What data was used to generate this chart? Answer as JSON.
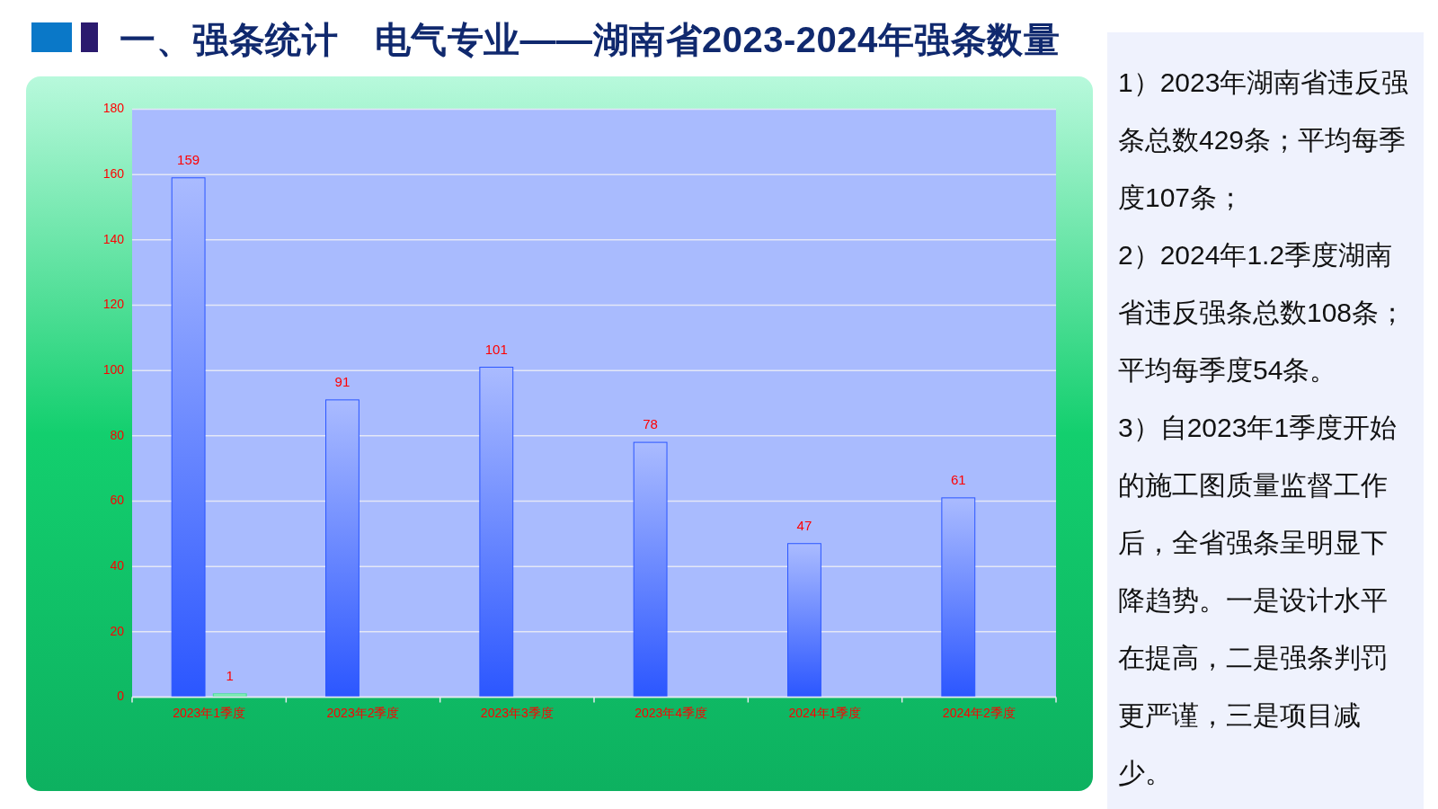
{
  "chart_data": {
    "type": "bar",
    "title": "一、强条统计　电气专业——湖南省2023-2024年强条数量",
    "categories": [
      "2023年1季度",
      "2023年2季度",
      "2023年3季度",
      "2023年4季度",
      "2024年1季度",
      "2024年2季度"
    ],
    "series": [
      {
        "color": "#2b56ff",
        "values": [
          159,
          91,
          101,
          78,
          47,
          61
        ]
      },
      {
        "color": "#3fe08f",
        "values": [
          1,
          null,
          null,
          null,
          null,
          null
        ]
      }
    ],
    "ylim": [
      0,
      180
    ],
    "yticks": [
      0,
      20,
      40,
      60,
      80,
      100,
      120,
      140,
      160,
      180
    ],
    "grid": "y",
    "data_labels": true,
    "annotations": [
      "1）2023年湖南省违反强条总数429条；平均每季度107条；",
      "2）2024年1.2季度湖南省违反强条总数108条；平均每季度54条。",
      "3）自2023年1季度开始的施工图质量监督工作后，全省强条呈明显下降趋势。一是设计水平在提高，二是强条判罚更严谨，三是项目减少。"
    ]
  }
}
